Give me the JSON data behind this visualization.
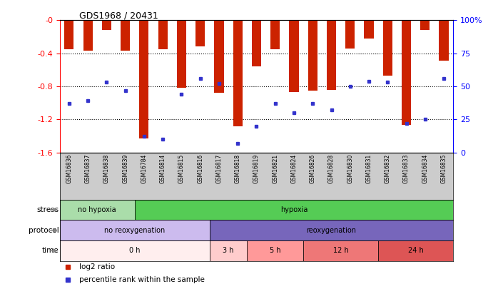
{
  "title": "GDS1968 / 20431",
  "samples": [
    "GSM16836",
    "GSM16837",
    "GSM16838",
    "GSM16839",
    "GSM16784",
    "GSM16814",
    "GSM16815",
    "GSM16816",
    "GSM16817",
    "GSM16818",
    "GSM16819",
    "GSM16821",
    "GSM16824",
    "GSM16826",
    "GSM16828",
    "GSM16830",
    "GSM16831",
    "GSM16832",
    "GSM16833",
    "GSM16834",
    "GSM16835"
  ],
  "log2_ratio": [
    -0.35,
    -0.37,
    -0.12,
    -0.37,
    -1.43,
    -0.35,
    -0.82,
    -0.32,
    -0.88,
    -1.28,
    -0.56,
    -0.35,
    -0.87,
    -0.85,
    -0.84,
    -0.34,
    -0.22,
    -0.67,
    -1.27,
    -0.12,
    -0.49
  ],
  "percentile_rank": [
    0.37,
    0.39,
    0.53,
    0.47,
    0.12,
    0.1,
    0.44,
    0.56,
    0.52,
    0.07,
    0.2,
    0.37,
    0.3,
    0.37,
    0.32,
    0.5,
    0.54,
    0.53,
    0.22,
    0.25,
    0.56
  ],
  "ylim_min": -1.6,
  "ylim_max": 0.0,
  "yticks": [
    0.0,
    -0.4,
    -0.8,
    -1.2,
    -1.6
  ],
  "bar_color": "#cc2200",
  "dot_color": "#3333cc",
  "stress_groups": [
    {
      "label": "no hypoxia",
      "start": 0,
      "end": 4,
      "color": "#aaddaa"
    },
    {
      "label": "hypoxia",
      "start": 4,
      "end": 21,
      "color": "#55cc55"
    }
  ],
  "protocol_groups": [
    {
      "label": "no reoxygenation",
      "start": 0,
      "end": 8,
      "color": "#ccbbee"
    },
    {
      "label": "reoxygenation",
      "start": 8,
      "end": 21,
      "color": "#7766bb"
    }
  ],
  "time_groups": [
    {
      "label": "0 h",
      "start": 0,
      "end": 8,
      "color": "#ffeeee"
    },
    {
      "label": "3 h",
      "start": 8,
      "end": 10,
      "color": "#ffcccc"
    },
    {
      "label": "5 h",
      "start": 10,
      "end": 13,
      "color": "#ff9999"
    },
    {
      "label": "12 h",
      "start": 13,
      "end": 17,
      "color": "#ee7777"
    },
    {
      "label": "24 h",
      "start": 17,
      "end": 21,
      "color": "#dd5555"
    }
  ],
  "row_labels": [
    "stress",
    "protocol",
    "time"
  ],
  "legend_items": [
    {
      "label": "log2 ratio",
      "color": "#cc2200"
    },
    {
      "label": "percentile rank within the sample",
      "color": "#3333cc"
    }
  ]
}
